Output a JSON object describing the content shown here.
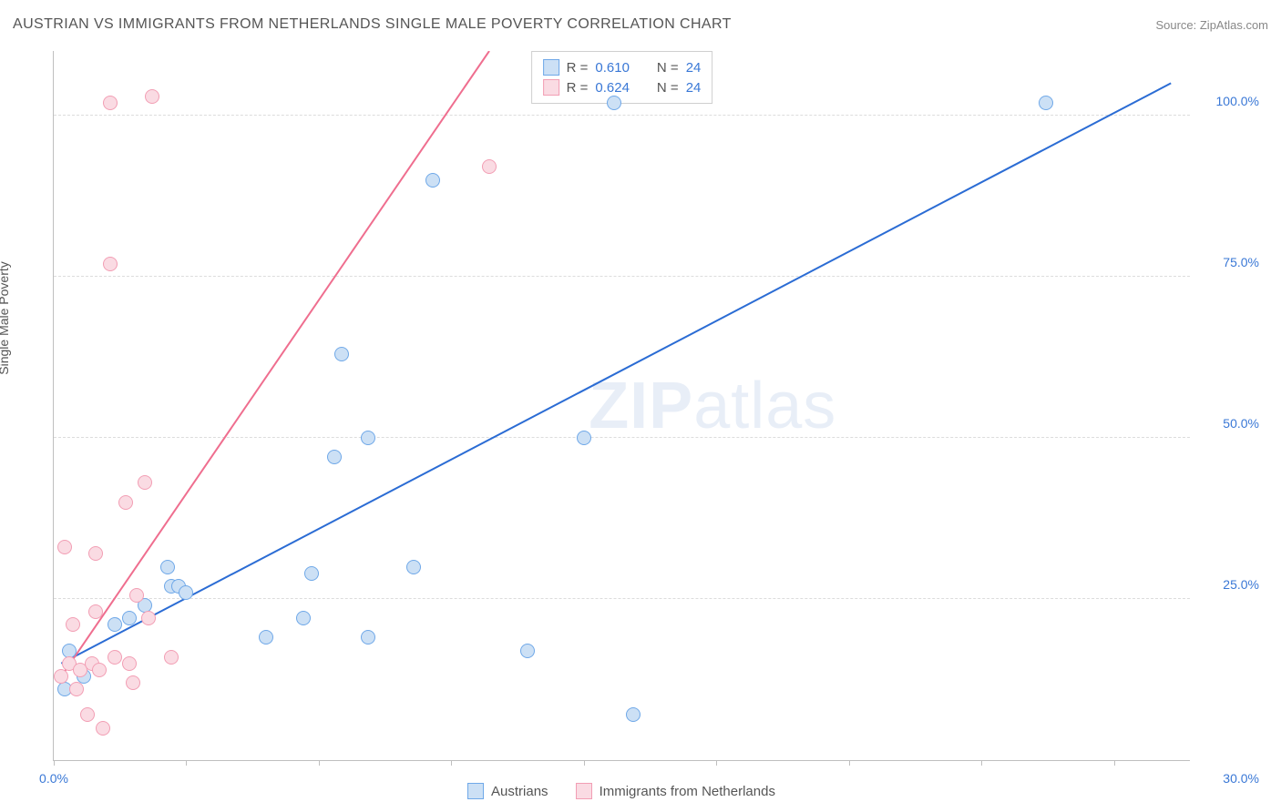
{
  "title": "AUSTRIAN VS IMMIGRANTS FROM NETHERLANDS SINGLE MALE POVERTY CORRELATION CHART",
  "source_label": "Source: ZipAtlas.com",
  "y_axis_label": "Single Male Poverty",
  "watermark": {
    "bold": "ZIP",
    "rest": "atlas"
  },
  "chart": {
    "type": "scatter",
    "background_color": "#ffffff",
    "grid_color": "#dcdcdc",
    "axis_color": "#bfbfbf",
    "tick_label_color": "#3a78d6",
    "tick_fontsize": 14,
    "xlim": [
      0,
      30
    ],
    "ylim": [
      0,
      110
    ],
    "x_ticks": [
      0,
      3.5,
      7.0,
      10.5,
      14.0,
      17.5,
      21.0,
      24.5,
      28.0
    ],
    "x_tick_labels": {
      "0": "0.0%",
      "30": "30.0%"
    },
    "y_gridlines": [
      25,
      50,
      75,
      100
    ],
    "y_tick_labels": {
      "25": "25.0%",
      "50": "50.0%",
      "75": "75.0%",
      "100": "100.0%"
    },
    "marker_radius": 8,
    "marker_border_width": 1,
    "trend_line_width": 2,
    "series": [
      {
        "key": "austrians",
        "name": "Austrians",
        "marker_fill": "#cce0f5",
        "marker_stroke": "#6fa8e8",
        "line_color": "#2b6cd4",
        "R": "0.610",
        "N": "24",
        "trend": {
          "x1": 0.2,
          "y1": 15,
          "x2": 29.5,
          "y2": 105
        },
        "points": [
          {
            "x": 0.3,
            "y": 11
          },
          {
            "x": 0.4,
            "y": 17
          },
          {
            "x": 0.8,
            "y": 13
          },
          {
            "x": 1.6,
            "y": 21
          },
          {
            "x": 2.0,
            "y": 22
          },
          {
            "x": 2.4,
            "y": 24
          },
          {
            "x": 3.0,
            "y": 30
          },
          {
            "x": 3.1,
            "y": 27
          },
          {
            "x": 3.3,
            "y": 27
          },
          {
            "x": 3.5,
            "y": 26
          },
          {
            "x": 5.6,
            "y": 19
          },
          {
            "x": 6.6,
            "y": 22
          },
          {
            "x": 6.8,
            "y": 29
          },
          {
            "x": 7.4,
            "y": 47
          },
          {
            "x": 7.6,
            "y": 63
          },
          {
            "x": 8.3,
            "y": 19
          },
          {
            "x": 8.3,
            "y": 50
          },
          {
            "x": 9.5,
            "y": 30
          },
          {
            "x": 10.0,
            "y": 90
          },
          {
            "x": 12.5,
            "y": 17
          },
          {
            "x": 14.0,
            "y": 50
          },
          {
            "x": 14.8,
            "y": 102
          },
          {
            "x": 15.3,
            "y": 7
          },
          {
            "x": 26.2,
            "y": 102
          }
        ]
      },
      {
        "key": "netherlands",
        "name": "Immigrants from Netherlands",
        "marker_fill": "#fadbe3",
        "marker_stroke": "#f29eb4",
        "line_color": "#ef6e8f",
        "R": "0.624",
        "N": "24",
        "trend": {
          "x1": 0.2,
          "y1": 13,
          "x2": 11.5,
          "y2": 110
        },
        "points": [
          {
            "x": 0.2,
            "y": 13
          },
          {
            "x": 0.3,
            "y": 33
          },
          {
            "x": 0.4,
            "y": 15
          },
          {
            "x": 0.5,
            "y": 21
          },
          {
            "x": 0.6,
            "y": 11
          },
          {
            "x": 0.7,
            "y": 14
          },
          {
            "x": 0.9,
            "y": 7
          },
          {
            "x": 1.0,
            "y": 15
          },
          {
            "x": 1.1,
            "y": 23
          },
          {
            "x": 1.1,
            "y": 32
          },
          {
            "x": 1.2,
            "y": 14
          },
          {
            "x": 1.3,
            "y": 5
          },
          {
            "x": 1.5,
            "y": 77
          },
          {
            "x": 1.5,
            "y": 102
          },
          {
            "x": 1.6,
            "y": 16
          },
          {
            "x": 1.9,
            "y": 40
          },
          {
            "x": 2.0,
            "y": 15
          },
          {
            "x": 2.1,
            "y": 12
          },
          {
            "x": 2.2,
            "y": 25.5
          },
          {
            "x": 2.4,
            "y": 43
          },
          {
            "x": 2.5,
            "y": 22
          },
          {
            "x": 2.6,
            "y": 103
          },
          {
            "x": 3.1,
            "y": 16
          },
          {
            "x": 11.5,
            "y": 92
          }
        ]
      }
    ],
    "legend_box": {
      "rows": [
        {
          "series": "austrians",
          "r_prefix": "R  = ",
          "n_prefix": "N  = "
        },
        {
          "series": "netherlands",
          "r_prefix": "R  = ",
          "n_prefix": "N  = "
        }
      ]
    }
  }
}
